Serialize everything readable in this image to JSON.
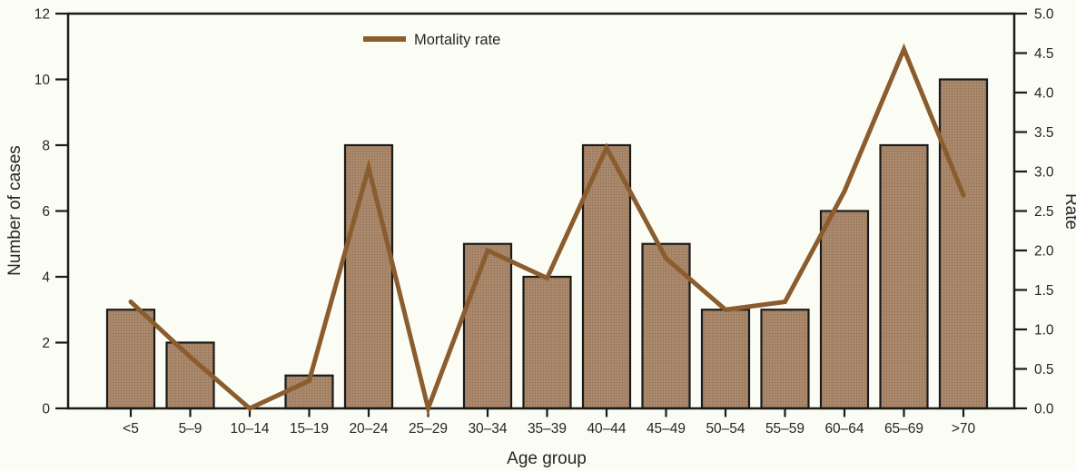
{
  "figure": {
    "x_axis_title": "Age group",
    "y_left_axis_title": "Number of cases",
    "y_right_axis_title": "Rate",
    "legend": {
      "mortality_rate_label": "Mortality rate"
    }
  },
  "chart_data": {
    "type": "combo-bar-line",
    "categories": [
      "<5",
      "5–9",
      "10–14",
      "15–19",
      "20–24",
      "25–29",
      "30–34",
      "35–39",
      "40–44",
      "45–49",
      "50–54",
      "55–59",
      "60–64",
      "65–69",
      ">70"
    ],
    "series": [
      {
        "name": "Number of cases",
        "type": "bar",
        "axis": "left",
        "values": [
          3,
          2,
          0,
          1,
          8,
          0,
          5,
          4,
          8,
          5,
          3,
          3,
          6,
          8,
          10
        ]
      },
      {
        "name": "Mortality rate",
        "type": "line",
        "axis": "right",
        "values": [
          1.35,
          0.65,
          0.0,
          0.35,
          3.05,
          0.0,
          2.0,
          1.65,
          3.3,
          1.9,
          1.25,
          1.35,
          2.75,
          4.55,
          2.7
        ]
      }
    ],
    "title": "",
    "xlabel": "Age group",
    "ylabel_left": "Number of cases",
    "ylabel_right": "Rate",
    "ylim_left": [
      0,
      12
    ],
    "ylim_right": [
      0.0,
      5.0
    ],
    "yticks_left": [
      0,
      2,
      4,
      6,
      8,
      10,
      12
    ],
    "yticks_right": [
      0.0,
      0.5,
      1.0,
      1.5,
      2.0,
      2.5,
      3.0,
      3.5,
      4.0,
      4.5,
      5.0
    ],
    "grid": false,
    "legend_position": "top-center-inside",
    "legend_entries": [
      "Mortality rate"
    ],
    "colors": {
      "background": "#fbfcf4",
      "bar_fill": "#a9886b",
      "bar_dot": "#8f6d50",
      "bar_stroke": "#1a1a1a",
      "line": "#8a5c2e",
      "axis": "#1a1a1a",
      "text": "#262626"
    }
  }
}
